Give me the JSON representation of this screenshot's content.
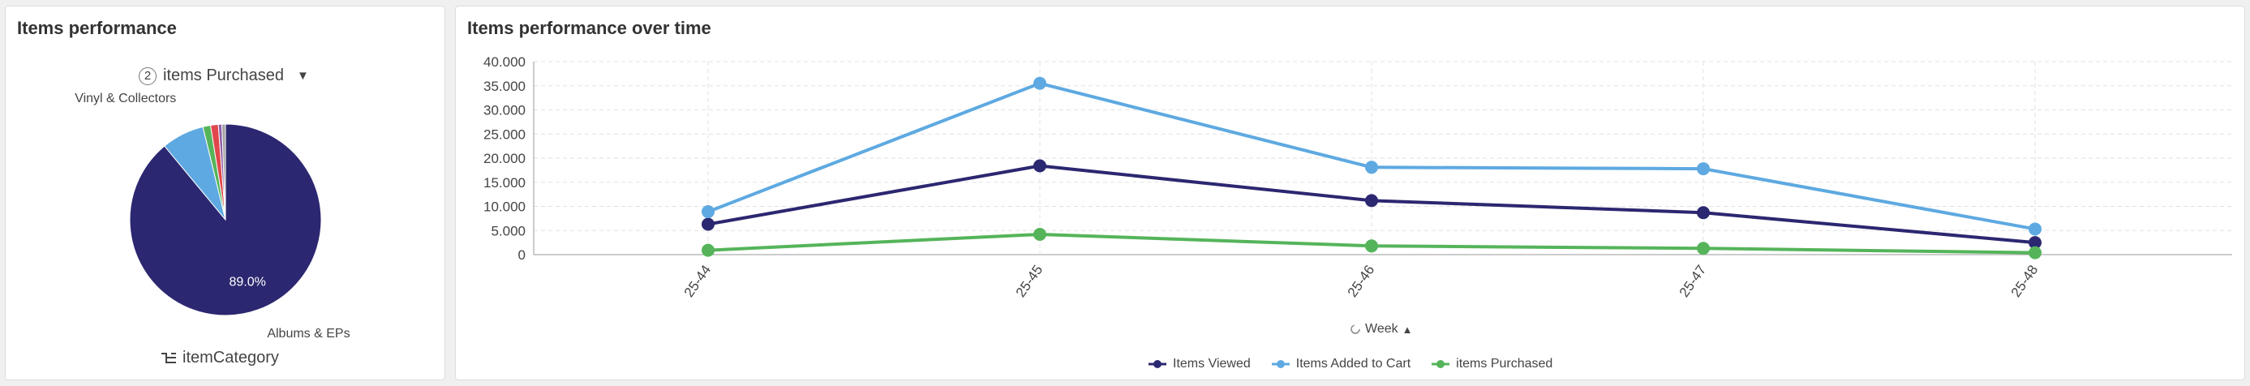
{
  "pie_panel": {
    "title": "Items performance",
    "measure_selector": {
      "count": "2",
      "label": "items Purchased"
    },
    "dimension_label": "itemCategory"
  },
  "line_panel": {
    "title": "Items performance over time",
    "x_axis_title": "Week"
  },
  "chart_data": [
    {
      "type": "pie",
      "title": "Items performance",
      "measure": "items Purchased",
      "dimension": "itemCategory",
      "slices": [
        {
          "label": "Albums & EPs",
          "value": 89.0,
          "color": "#2b2770",
          "percent_label": "89.0%"
        },
        {
          "label": "Vinyl & Collectors",
          "value": 7.2,
          "color": "#5ea9e1",
          "percent_label": ""
        },
        {
          "label": "",
          "value": 1.3,
          "color": "#55b45a",
          "percent_label": ""
        },
        {
          "label": "",
          "value": 1.3,
          "color": "#e0474c",
          "percent_label": ""
        },
        {
          "label": "",
          "value": 0.6,
          "color": "#8e5ea8",
          "percent_label": ""
        },
        {
          "label": "",
          "value": 0.6,
          "color": "#a0a0a0",
          "percent_label": ""
        }
      ]
    },
    {
      "type": "line",
      "title": "Items performance over time",
      "x": [
        "25-44",
        "25-45",
        "25-46",
        "25-47",
        "25-48"
      ],
      "xlabel": "Week",
      "ylabel": "",
      "ylim": [
        0,
        40000
      ],
      "yticks": [
        0,
        5000,
        10000,
        15000,
        20000,
        25000,
        30000,
        35000,
        40000
      ],
      "ytick_labels": [
        "0",
        "5.000",
        "10.000",
        "15.000",
        "20.000",
        "25.000",
        "30.000",
        "35.000",
        "40.000"
      ],
      "grid": true,
      "legend_position": "bottom",
      "series": [
        {
          "name": "Items Viewed",
          "color": "#2b2770",
          "values": [
            6300,
            18400,
            11200,
            8700,
            2500
          ]
        },
        {
          "name": "Items Added to Cart",
          "color": "#5ea9e1",
          "values": [
            8900,
            35500,
            18100,
            17800,
            5300
          ]
        },
        {
          "name": "items Purchased",
          "color": "#55b45a",
          "values": [
            900,
            4200,
            1800,
            1300,
            400
          ]
        }
      ]
    }
  ]
}
